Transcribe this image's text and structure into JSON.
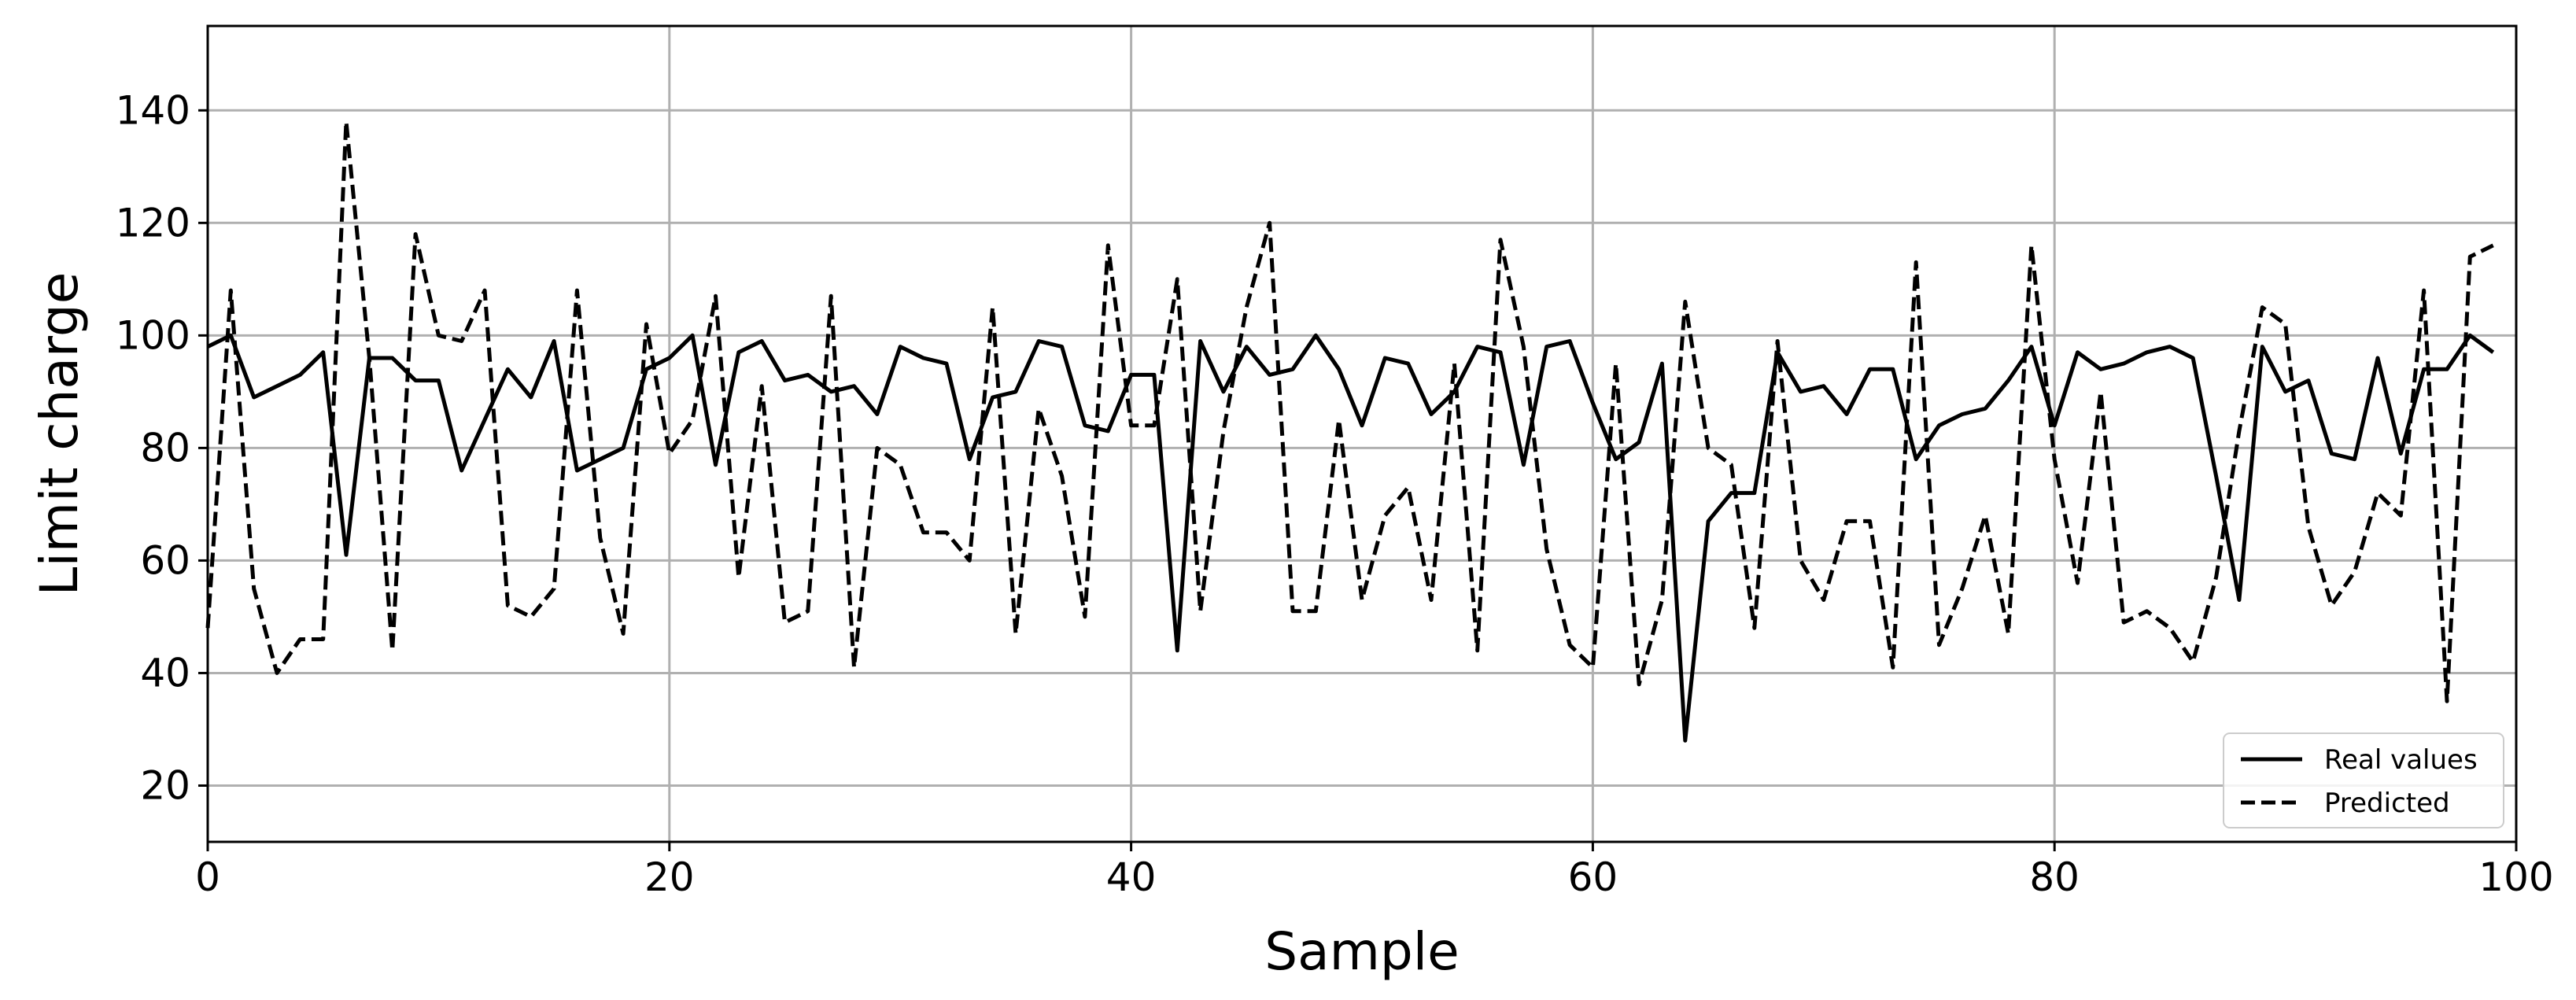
{
  "chart_data": {
    "type": "line",
    "xlabel": "Sample",
    "ylabel": "Limit charge",
    "xlim": [
      0,
      100
    ],
    "ylim": [
      10,
      155
    ],
    "x_ticks": [
      0,
      20,
      40,
      60,
      80,
      100
    ],
    "y_ticks": [
      20,
      40,
      60,
      80,
      100,
      120,
      140
    ],
    "x_tick_labels": [
      "0",
      "20",
      "40",
      "60",
      "80",
      "100"
    ],
    "y_tick_labels": [
      "20",
      "40",
      "60",
      "80",
      "100",
      "120",
      "140"
    ],
    "grid": true,
    "legend": "bottom-right",
    "x": [
      0,
      1,
      2,
      3,
      4,
      5,
      6,
      7,
      8,
      9,
      10,
      11,
      12,
      13,
      14,
      15,
      16,
      17,
      18,
      19,
      20,
      21,
      22,
      23,
      24,
      25,
      26,
      27,
      28,
      29,
      30,
      31,
      32,
      33,
      34,
      35,
      36,
      37,
      38,
      39,
      40,
      41,
      42,
      43,
      44,
      45,
      46,
      47,
      48,
      49,
      50,
      51,
      52,
      53,
      54,
      55,
      56,
      57,
      58,
      59,
      60,
      61,
      62,
      63,
      64,
      65,
      66,
      67,
      68,
      69,
      70,
      71,
      72,
      73,
      74,
      75,
      76,
      77,
      78,
      79,
      80,
      81,
      82,
      83,
      84,
      85,
      86,
      87,
      88,
      89,
      90,
      91,
      92,
      93,
      94,
      95,
      96,
      97,
      98,
      99
    ],
    "series": [
      {
        "name": "Real values",
        "style": "solid",
        "color": "#000000",
        "values": [
          98,
          100,
          89,
          91,
          93,
          97,
          61,
          96,
          96,
          92,
          92,
          76,
          85,
          94,
          89,
          99,
          76,
          78,
          80,
          94,
          96,
          100,
          77,
          97,
          99,
          92,
          93,
          90,
          91,
          86,
          98,
          96,
          95,
          78,
          89,
          90,
          99,
          98,
          84,
          83,
          93,
          93,
          44,
          99,
          90,
          98,
          93,
          94,
          100,
          94,
          84,
          96,
          95,
          86,
          90,
          98,
          97,
          77,
          98,
          99,
          88,
          78,
          81,
          95,
          28,
          67,
          72,
          72,
          97,
          90,
          91,
          86,
          94,
          94,
          78,
          84,
          86,
          87,
          92,
          98,
          84,
          97,
          94,
          95,
          97,
          98,
          96,
          75,
          53,
          98,
          90,
          92,
          79,
          78,
          96,
          79,
          94,
          94,
          100,
          97
        ]
      },
      {
        "name": "Predicted",
        "style": "dashed",
        "color": "#000000",
        "values": [
          48,
          108,
          55,
          40,
          46,
          46,
          138,
          96,
          44,
          118,
          100,
          99,
          108,
          52,
          50,
          55,
          108,
          64,
          47,
          102,
          79,
          85,
          107,
          57,
          91,
          49,
          51,
          107,
          41,
          80,
          77,
          65,
          65,
          60,
          105,
          47,
          87,
          75,
          50,
          116,
          84,
          84,
          110,
          51,
          83,
          105,
          120,
          51,
          51,
          85,
          53,
          68,
          73,
          53,
          95,
          44,
          117,
          98,
          62,
          45,
          41,
          95,
          38,
          53,
          106,
          80,
          77,
          48,
          99,
          60,
          53,
          67,
          67,
          41,
          113,
          45,
          55,
          68,
          47,
          116,
          78,
          56,
          90,
          49,
          51,
          48,
          42,
          57,
          83,
          105,
          102,
          66,
          52,
          58,
          72,
          68,
          108,
          35,
          114,
          116
        ]
      }
    ]
  }
}
